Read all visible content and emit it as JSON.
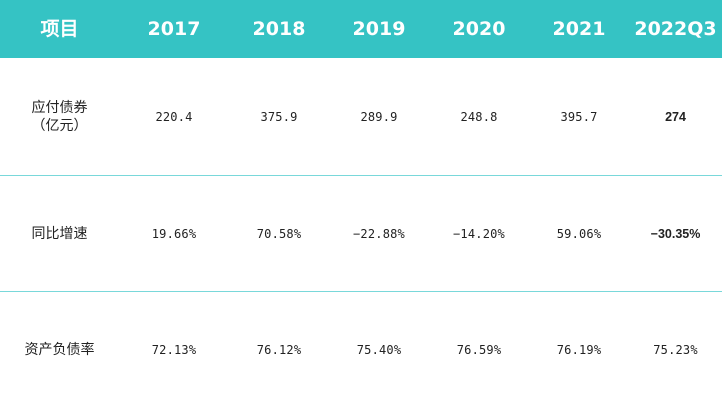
{
  "table": {
    "headers": [
      "项目",
      "2017",
      "2018",
      "2019",
      "2020",
      "2021",
      "2022Q3"
    ],
    "rows": [
      {
        "label_lines": [
          "应付债券",
          "（亿元）"
        ],
        "values": [
          "220.4",
          "375.9",
          "289.9",
          "248.8",
          "395.7",
          "274"
        ]
      },
      {
        "label_lines": [
          "同比增速"
        ],
        "values": [
          "19.66%",
          "70.58%",
          "−22.88%",
          "−14.20%",
          "59.06%",
          "−30.35%"
        ]
      },
      {
        "label_lines": [
          "资产负债率"
        ],
        "values": [
          "72.13%",
          "76.12%",
          "75.40%",
          "76.59%",
          "76.19%",
          "75.23%"
        ]
      }
    ]
  },
  "colors": {
    "header_background": "#35c3c4",
    "row_divider": "#79d8da",
    "body_text": "#222222"
  }
}
